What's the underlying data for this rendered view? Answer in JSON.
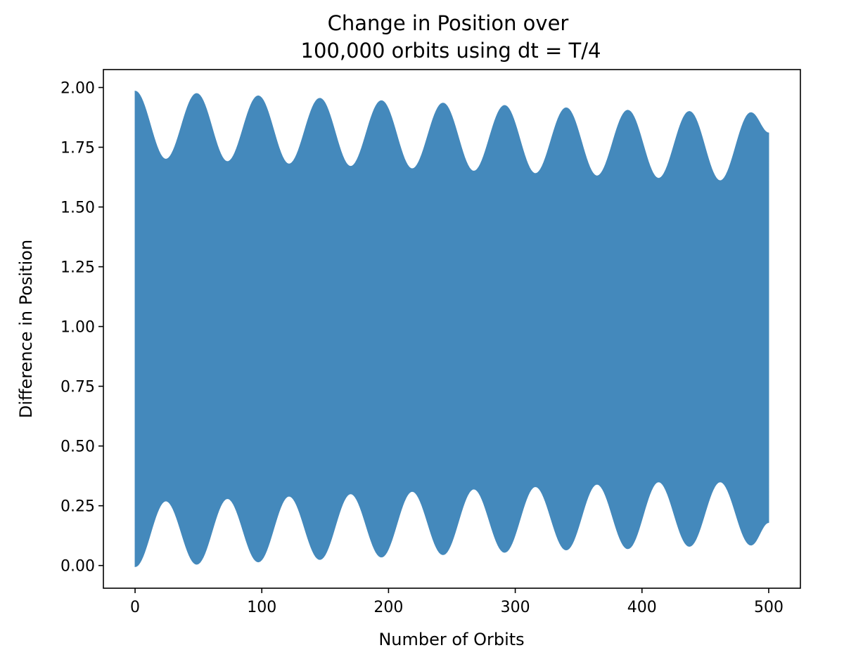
{
  "chart_data": {
    "type": "area",
    "title_line1": "Change in Position over",
    "title_line2": "100,000 orbits using dt = T/4",
    "xlabel": "Number of Orbits",
    "ylabel": "Difference in Position",
    "xlim": [
      -25,
      525
    ],
    "ylim": [
      -0.095,
      2.075
    ],
    "xticks": [
      0,
      100,
      200,
      300,
      400,
      500
    ],
    "xtick_labels": [
      "0",
      "100",
      "200",
      "300",
      "400",
      "500"
    ],
    "yticks": [
      0.0,
      0.25,
      0.5,
      0.75,
      1.0,
      1.25,
      1.5,
      1.75,
      2.0
    ],
    "ytick_labels": [
      "0.00",
      "0.25",
      "0.50",
      "0.75",
      "1.00",
      "1.25",
      "1.50",
      "1.75",
      "2.00"
    ],
    "grid": false,
    "series": [
      {
        "color": "#4489bc",
        "x": [
          0,
          24.3,
          48.6,
          72.9,
          97.2,
          121.5,
          145.8,
          170.1,
          194.4,
          218.7,
          243,
          267.3,
          291.6,
          315.9,
          340.2,
          364.5,
          388.8,
          413.1,
          437.4,
          461.7,
          486,
          500
        ],
        "upper": [
          1.985,
          1.7,
          1.975,
          1.69,
          1.965,
          1.68,
          1.955,
          1.67,
          1.945,
          1.66,
          1.935,
          1.65,
          1.925,
          1.64,
          1.915,
          1.63,
          1.905,
          1.62,
          1.9,
          1.61,
          1.895,
          1.81
        ],
        "lower": [
          -0.005,
          0.27,
          0.005,
          0.28,
          0.015,
          0.29,
          0.025,
          0.3,
          0.035,
          0.31,
          0.045,
          0.32,
          0.055,
          0.33,
          0.065,
          0.34,
          0.07,
          0.35,
          0.08,
          0.35,
          0.085,
          0.18
        ]
      }
    ]
  }
}
